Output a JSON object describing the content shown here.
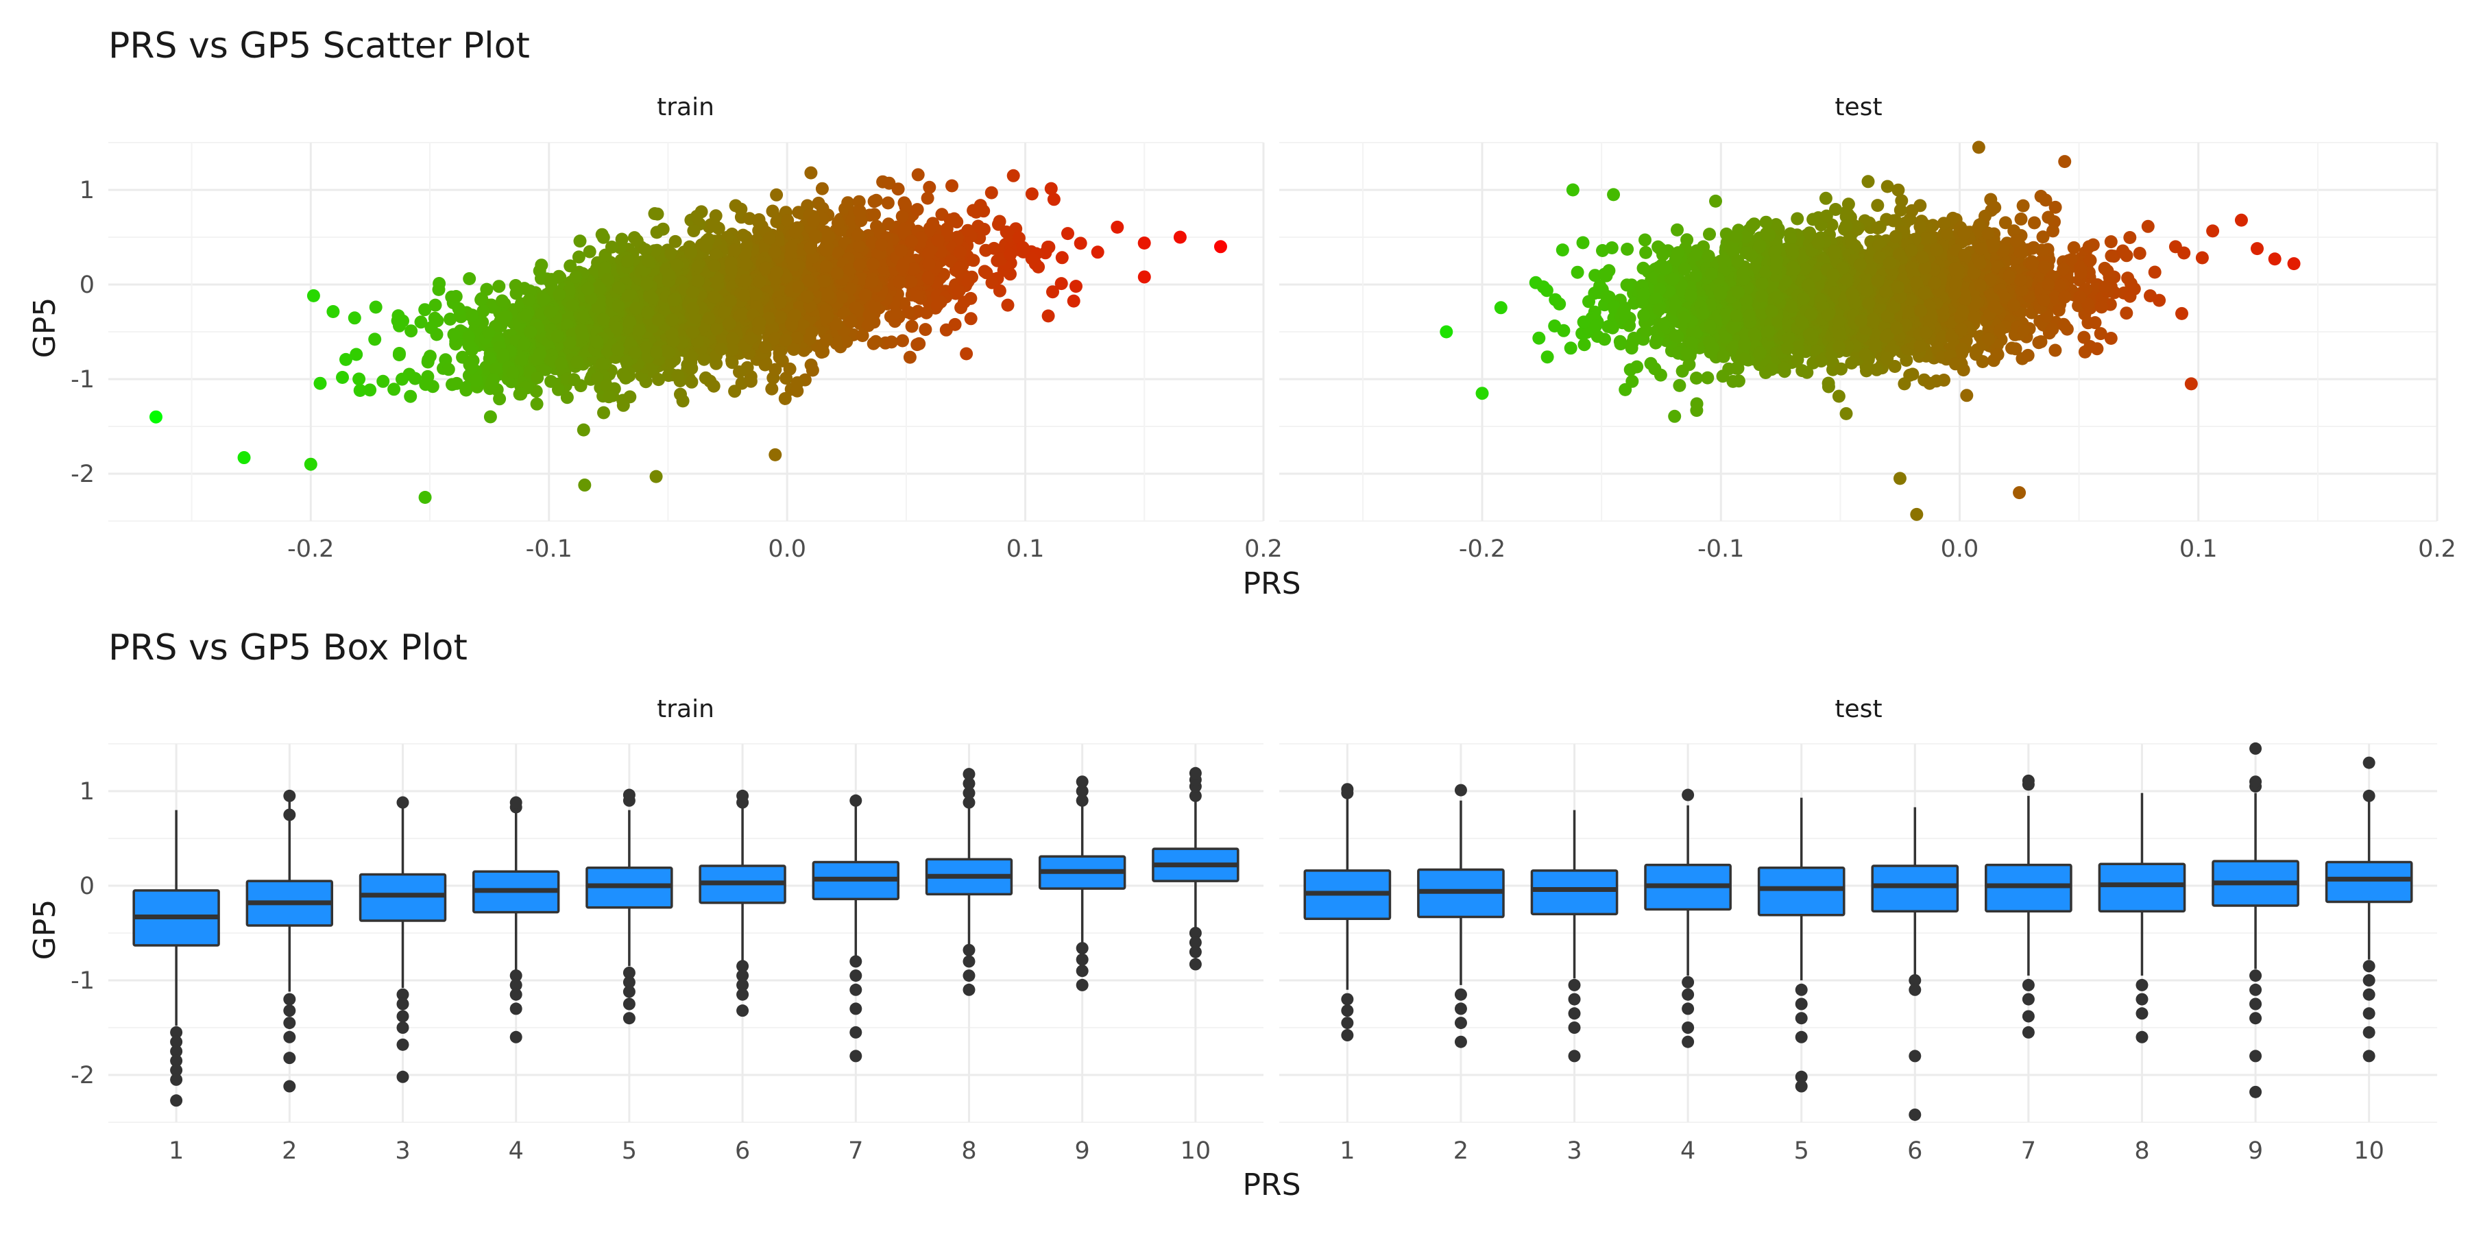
{
  "chart_data": [
    {
      "type": "scatter",
      "title": "PRS vs GP5 Scatter Plot",
      "xlabel": "PRS",
      "ylabel": "GP5",
      "xlim": [
        -0.285,
        0.2
      ],
      "ylim": [
        -2.5,
        1.5
      ],
      "x_ticks": [
        -0.2,
        -0.1,
        0.0,
        0.1,
        0.2
      ],
      "x_tick_labels": [
        "-0.2",
        "-0.1",
        "0.0",
        "0.1",
        "0.2"
      ],
      "y_ticks": [
        -2,
        -1,
        0,
        1
      ],
      "y_tick_labels": [
        "-2",
        "-1",
        "0",
        "1"
      ],
      "grid": true,
      "color_scale": {
        "low": "#00ff00",
        "high": "#ff0000",
        "mapped_to": "PRS"
      },
      "facets": [
        {
          "label": "train",
          "trend": {
            "slope": 4.2,
            "intercept": -0.05
          },
          "notable_points": [
            {
              "x": -0.265,
              "y": -1.4
            },
            {
              "x": -0.228,
              "y": -1.83
            },
            {
              "x": -0.2,
              "y": -1.9
            },
            {
              "x": -0.152,
              "y": -2.25
            },
            {
              "x": -0.085,
              "y": -2.12
            },
            {
              "x": -0.055,
              "y": -2.03
            },
            {
              "x": -0.005,
              "y": -1.8
            },
            {
              "x": 0.01,
              "y": 1.18
            },
            {
              "x": 0.055,
              "y": 1.16
            },
            {
              "x": 0.095,
              "y": 1.15
            },
            {
              "x": 0.15,
              "y": 0.08
            },
            {
              "x": 0.165,
              "y": 0.5
            },
            {
              "x": 0.182,
              "y": 0.4
            }
          ]
        },
        {
          "label": "test",
          "trend": {
            "slope": 1.1,
            "intercept": -0.07
          },
          "notable_points": [
            {
              "x": -0.215,
              "y": -0.5
            },
            {
              "x": -0.2,
              "y": -1.15
            },
            {
              "x": -0.162,
              "y": 1.0
            },
            {
              "x": -0.145,
              "y": 0.95
            },
            {
              "x": 0.008,
              "y": 1.45
            },
            {
              "x": 0.044,
              "y": 1.3
            },
            {
              "x": -0.025,
              "y": -2.05
            },
            {
              "x": -0.018,
              "y": -2.43
            },
            {
              "x": 0.025,
              "y": -2.2
            },
            {
              "x": 0.097,
              "y": -1.05
            },
            {
              "x": 0.118,
              "y": 0.68
            },
            {
              "x": 0.132,
              "y": 0.27
            },
            {
              "x": 0.14,
              "y": 0.22
            }
          ]
        }
      ]
    },
    {
      "type": "box",
      "title": "PRS vs GP5 Box Plot",
      "xlabel": "PRS",
      "ylabel": "GP5",
      "ylim": [
        -2.5,
        1.5
      ],
      "categories": [
        "1",
        "2",
        "3",
        "4",
        "5",
        "6",
        "7",
        "8",
        "9",
        "10"
      ],
      "y_ticks": [
        -2,
        -1,
        0,
        1
      ],
      "y_tick_labels": [
        "-2",
        "-1",
        "0",
        "1"
      ],
      "box_color": "#1e90ff",
      "grid": true,
      "facets": [
        {
          "label": "train",
          "boxes": [
            {
              "q1": -0.63,
              "median": -0.33,
              "q3": -0.05,
              "whisker_low": -1.48,
              "whisker_high": 0.8,
              "outliers": [
                -1.55,
                -1.65,
                -1.75,
                -1.85,
                -1.95,
                -2.05,
                -2.27
              ]
            },
            {
              "q1": -0.42,
              "median": -0.18,
              "q3": 0.05,
              "whisker_low": -1.12,
              "whisker_high": 0.9,
              "outliers": [
                0.75,
                0.95,
                -1.2,
                -1.32,
                -1.45,
                -1.6,
                -1.82,
                -2.12
              ]
            },
            {
              "q1": -0.37,
              "median": -0.1,
              "q3": 0.12,
              "whisker_low": -1.08,
              "whisker_high": 0.82,
              "outliers": [
                0.88,
                -1.15,
                -1.25,
                -1.38,
                -1.5,
                -1.68,
                -2.02
              ]
            },
            {
              "q1": -0.28,
              "median": -0.05,
              "q3": 0.15,
              "whisker_low": -0.9,
              "whisker_high": 0.8,
              "outliers": [
                0.83,
                0.88,
                -0.95,
                -1.05,
                -1.15,
                -1.3,
                -1.6
              ]
            },
            {
              "q1": -0.23,
              "median": 0.0,
              "q3": 0.19,
              "whisker_low": -0.85,
              "whisker_high": 0.8,
              "outliers": [
                0.9,
                0.96,
                -0.92,
                -1.02,
                -1.12,
                -1.25,
                -1.4
              ]
            },
            {
              "q1": -0.18,
              "median": 0.03,
              "q3": 0.21,
              "whisker_low": -0.8,
              "whisker_high": 0.85,
              "outliers": [
                0.88,
                0.95,
                -0.85,
                -0.95,
                -1.05,
                -1.15,
                -1.32
              ]
            },
            {
              "q1": -0.14,
              "median": 0.07,
              "q3": 0.25,
              "whisker_low": -0.75,
              "whisker_high": 0.85,
              "outliers": [
                0.9,
                -0.8,
                -0.95,
                -1.1,
                -1.3,
                -1.55,
                -1.8
              ]
            },
            {
              "q1": -0.09,
              "median": 0.1,
              "q3": 0.28,
              "whisker_low": -0.62,
              "whisker_high": 0.82,
              "outliers": [
                0.88,
                0.98,
                1.08,
                1.18,
                -0.68,
                -0.8,
                -0.95,
                -1.1
              ]
            },
            {
              "q1": -0.03,
              "median": 0.15,
              "q3": 0.31,
              "whisker_low": -0.6,
              "whisker_high": 0.85,
              "outliers": [
                0.9,
                1.0,
                1.1,
                -0.66,
                -0.78,
                -0.9,
                -1.05
              ]
            },
            {
              "q1": 0.05,
              "median": 0.22,
              "q3": 0.39,
              "whisker_low": -0.45,
              "whisker_high": 0.9,
              "outliers": [
                0.95,
                1.05,
                1.12,
                1.19,
                -0.5,
                -0.6,
                -0.7,
                -0.83
              ]
            }
          ]
        },
        {
          "label": "test",
          "boxes": [
            {
              "q1": -0.35,
              "median": -0.08,
              "q3": 0.16,
              "whisker_low": -1.1,
              "whisker_high": 0.92,
              "outliers": [
                0.98,
                1.02,
                -1.2,
                -1.32,
                -1.45,
                -1.58
              ]
            },
            {
              "q1": -0.33,
              "median": -0.06,
              "q3": 0.17,
              "whisker_low": -1.05,
              "whisker_high": 0.9,
              "outliers": [
                1.01,
                -1.15,
                -1.3,
                -1.45,
                -1.65
              ]
            },
            {
              "q1": -0.3,
              "median": -0.04,
              "q3": 0.16,
              "whisker_low": -0.98,
              "whisker_high": 0.8,
              "outliers": [
                -1.05,
                -1.2,
                -1.35,
                -1.5,
                -1.8
              ]
            },
            {
              "q1": -0.25,
              "median": 0.0,
              "q3": 0.22,
              "whisker_low": -0.95,
              "whisker_high": 0.85,
              "outliers": [
                0.96,
                -1.02,
                -1.15,
                -1.3,
                -1.5,
                -1.65
              ]
            },
            {
              "q1": -0.31,
              "median": -0.03,
              "q3": 0.19,
              "whisker_low": -1.0,
              "whisker_high": 0.93,
              "outliers": [
                -1.1,
                -1.25,
                -1.4,
                -1.6,
                -2.02,
                -2.12
              ]
            },
            {
              "q1": -0.27,
              "median": 0.0,
              "q3": 0.21,
              "whisker_low": -0.95,
              "whisker_high": 0.83,
              "outliers": [
                -1.0,
                -1.1,
                -1.8,
                -2.42
              ]
            },
            {
              "q1": -0.27,
              "median": 0.0,
              "q3": 0.22,
              "whisker_low": -0.95,
              "whisker_high": 0.95,
              "outliers": [
                1.07,
                1.11,
                -1.05,
                -1.2,
                -1.38,
                -1.55
              ]
            },
            {
              "q1": -0.27,
              "median": 0.01,
              "q3": 0.23,
              "whisker_low": -0.95,
              "whisker_high": 0.98,
              "outliers": [
                -1.05,
                -1.2,
                -1.35,
                -1.6
              ]
            },
            {
              "q1": -0.21,
              "median": 0.03,
              "q3": 0.26,
              "whisker_low": -0.88,
              "whisker_high": 0.98,
              "outliers": [
                1.05,
                1.1,
                1.45,
                -0.95,
                -1.1,
                -1.25,
                -1.4,
                -1.8,
                -2.18
              ]
            },
            {
              "q1": -0.17,
              "median": 0.07,
              "q3": 0.25,
              "whisker_low": -0.78,
              "whisker_high": 0.9,
              "outliers": [
                0.95,
                1.3,
                -0.85,
                -1.0,
                -1.15,
                -1.35,
                -1.55,
                -1.8
              ]
            }
          ]
        }
      ]
    }
  ]
}
